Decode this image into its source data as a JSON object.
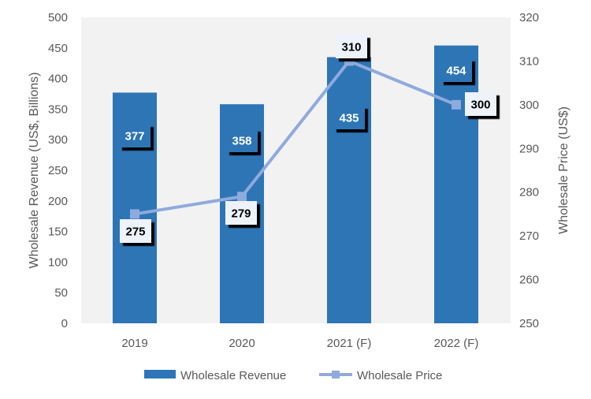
{
  "chart_data": {
    "type": "bar+line",
    "categories": [
      "2019",
      "2020",
      "2021 (F)",
      "2022 (F)"
    ],
    "series": [
      {
        "name": "Wholesale Revenue",
        "type": "bar",
        "axis": "left",
        "values": [
          377,
          358,
          435,
          454
        ],
        "labels": [
          "377",
          "358",
          "435",
          "454"
        ],
        "color": "#2E75B6"
      },
      {
        "name": "Wholesale Price",
        "type": "line",
        "axis": "right",
        "values": [
          275,
          279,
          310,
          300
        ],
        "labels": [
          "275",
          "279",
          "310",
          "300"
        ],
        "color": "#8FAADC"
      }
    ],
    "y_left": {
      "label": "Wholesale Revenue (US$, Billions)",
      "min": 0,
      "max": 500,
      "step": 50,
      "ticks": [
        "0",
        "50",
        "100",
        "150",
        "200",
        "250",
        "300",
        "350",
        "400",
        "450",
        "500"
      ]
    },
    "y_right": {
      "label": "Wholesale Price (US$)",
      "min": 250,
      "max": 320,
      "step": 10,
      "ticks": [
        "250",
        "260",
        "270",
        "280",
        "290",
        "300",
        "310",
        "320"
      ]
    },
    "plot_background": "#F2F2F2",
    "grid": false,
    "legend": {
      "position": "bottom",
      "entries": [
        "Wholesale Revenue",
        "Wholesale Price"
      ]
    }
  }
}
